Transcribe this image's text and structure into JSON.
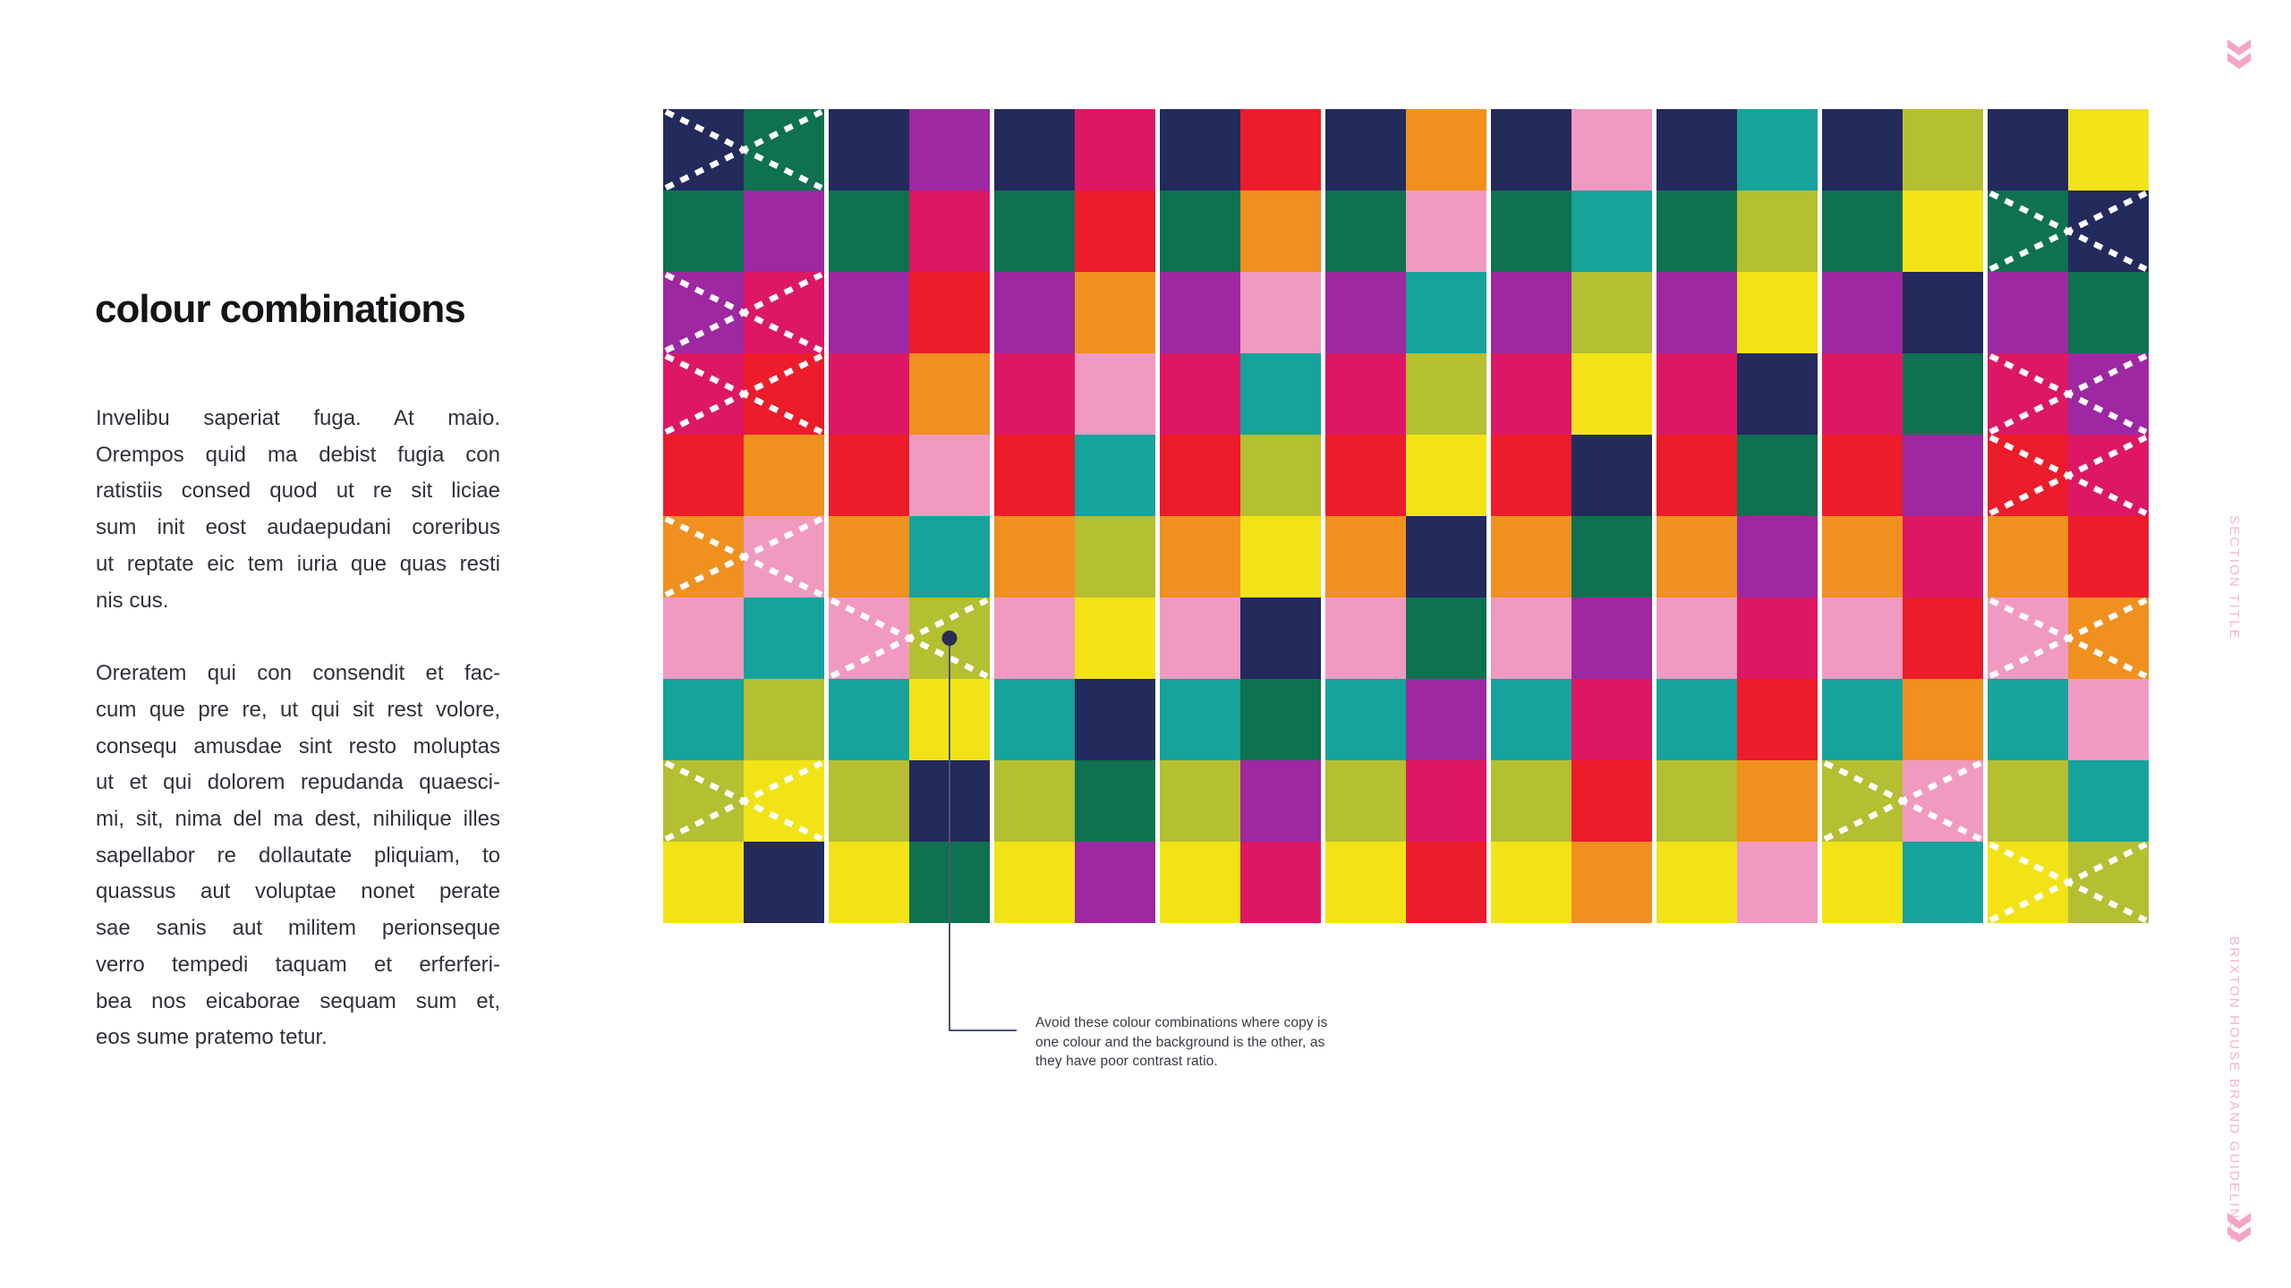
{
  "page": {
    "title": "colour combinations",
    "paragraphs": [
      {
        "lines": [
          "Invelibu saperiat fuga. At maio.",
          "Orempos quid ma debist fugia con",
          "ratistiis consed quod ut re sit liciae",
          "sum init eost audaepudani coreribus",
          "ut reptate eic tem iuria que quas resti",
          "nis cus."
        ]
      },
      {
        "lines": [
          "Oreratem qui con consendit et fac-",
          "cum que pre re, ut qui sit rest volore,",
          "consequ amusdae sint resto moluptas",
          "ut et qui dolorem repudanda quaesci-",
          "mi, sit, nima del ma dest, nihilique illes",
          "sapellabor re dollautate pliquiam, to",
          "quassus aut voluptae nonet perate",
          "sae sanis aut militem perionseque",
          "verro tempedi taquam et erferferi-",
          "bea nos eicaborae sequam sum et,",
          "eos sume pratemo tetur."
        ]
      }
    ]
  },
  "annotation": {
    "lines": [
      "Avoid these colour combinations where copy is",
      "one colour and the background is the other, as",
      "they have poor contrast ratio."
    ]
  },
  "sidebar": {
    "section_label": "SECTION TITLE",
    "brand_label": "BRIXTON HOUSE BRAND GUIDELINES"
  },
  "colors": {
    "pink_accent": "#f8b4cc",
    "chevron_pink": "#f5a5c6",
    "text": "#31313b",
    "leader_line": "#4a5470",
    "dot": "#272e52",
    "x_mark": "#ffffff"
  },
  "palette": {
    "navy": "#232a5c",
    "green": "#0e7150",
    "purple": "#9d28a1",
    "crimson": "#dd1763",
    "red": "#ec1c2a",
    "orange": "#f0901f",
    "pink": "#f19ac1",
    "teal": "#16a39b",
    "lime": "#b4bf31",
    "yellow": "#f2e317"
  },
  "grid": {
    "rows": 10,
    "pairs_per_row": 9,
    "callout": {
      "row": 7,
      "pair": 2,
      "cell": "lime"
    },
    "cells": [
      [
        [
          "navy",
          "green",
          true
        ],
        [
          "navy",
          "purple",
          false
        ],
        [
          "navy",
          "crimson",
          false
        ],
        [
          "navy",
          "red",
          false
        ],
        [
          "navy",
          "orange",
          false
        ],
        [
          "navy",
          "pink",
          false
        ],
        [
          "navy",
          "teal",
          false
        ],
        [
          "navy",
          "lime",
          false
        ],
        [
          "navy",
          "yellow",
          false
        ]
      ],
      [
        [
          "green",
          "purple",
          false
        ],
        [
          "green",
          "crimson",
          false
        ],
        [
          "green",
          "red",
          false
        ],
        [
          "green",
          "orange",
          false
        ],
        [
          "green",
          "pink",
          false
        ],
        [
          "green",
          "teal",
          false
        ],
        [
          "green",
          "lime",
          false
        ],
        [
          "green",
          "yellow",
          false
        ],
        [
          "green",
          "navy",
          true
        ]
      ],
      [
        [
          "purple",
          "crimson",
          true
        ],
        [
          "purple",
          "red",
          false
        ],
        [
          "purple",
          "orange",
          false
        ],
        [
          "purple",
          "pink",
          false
        ],
        [
          "purple",
          "teal",
          false
        ],
        [
          "purple",
          "lime",
          false
        ],
        [
          "purple",
          "yellow",
          false
        ],
        [
          "purple",
          "navy",
          false
        ],
        [
          "purple",
          "green",
          false
        ]
      ],
      [
        [
          "crimson",
          "red",
          true
        ],
        [
          "crimson",
          "orange",
          false
        ],
        [
          "crimson",
          "pink",
          false
        ],
        [
          "crimson",
          "teal",
          false
        ],
        [
          "crimson",
          "lime",
          false
        ],
        [
          "crimson",
          "yellow",
          false
        ],
        [
          "crimson",
          "navy",
          false
        ],
        [
          "crimson",
          "green",
          false
        ],
        [
          "crimson",
          "purple",
          true
        ]
      ],
      [
        [
          "red",
          "orange",
          false
        ],
        [
          "red",
          "pink",
          false
        ],
        [
          "red",
          "teal",
          false
        ],
        [
          "red",
          "lime",
          false
        ],
        [
          "red",
          "yellow",
          false
        ],
        [
          "red",
          "navy",
          false
        ],
        [
          "red",
          "green",
          false
        ],
        [
          "red",
          "purple",
          false
        ],
        [
          "red",
          "crimson",
          true
        ]
      ],
      [
        [
          "orange",
          "pink",
          true
        ],
        [
          "orange",
          "teal",
          false
        ],
        [
          "orange",
          "lime",
          false
        ],
        [
          "orange",
          "yellow",
          false
        ],
        [
          "orange",
          "navy",
          false
        ],
        [
          "orange",
          "green",
          false
        ],
        [
          "orange",
          "purple",
          false
        ],
        [
          "orange",
          "crimson",
          false
        ],
        [
          "orange",
          "red",
          false
        ]
      ],
      [
        [
          "pink",
          "teal",
          false
        ],
        [
          "pink",
          "lime",
          true
        ],
        [
          "pink",
          "yellow",
          false
        ],
        [
          "pink",
          "navy",
          false
        ],
        [
          "pink",
          "green",
          false
        ],
        [
          "pink",
          "purple",
          false
        ],
        [
          "pink",
          "crimson",
          false
        ],
        [
          "pink",
          "red",
          false
        ],
        [
          "pink",
          "orange",
          true
        ]
      ],
      [
        [
          "teal",
          "lime",
          false
        ],
        [
          "teal",
          "yellow",
          false
        ],
        [
          "teal",
          "navy",
          false
        ],
        [
          "teal",
          "green",
          false
        ],
        [
          "teal",
          "purple",
          false
        ],
        [
          "teal",
          "crimson",
          false
        ],
        [
          "teal",
          "red",
          false
        ],
        [
          "teal",
          "orange",
          false
        ],
        [
          "teal",
          "pink",
          false
        ]
      ],
      [
        [
          "lime",
          "yellow",
          true
        ],
        [
          "lime",
          "navy",
          false
        ],
        [
          "lime",
          "green",
          false
        ],
        [
          "lime",
          "purple",
          false
        ],
        [
          "lime",
          "crimson",
          false
        ],
        [
          "lime",
          "red",
          false
        ],
        [
          "lime",
          "orange",
          false
        ],
        [
          "lime",
          "pink",
          true
        ],
        [
          "lime",
          "teal",
          false
        ]
      ],
      [
        [
          "yellow",
          "navy",
          false
        ],
        [
          "yellow",
          "green",
          false
        ],
        [
          "yellow",
          "purple",
          false
        ],
        [
          "yellow",
          "crimson",
          false
        ],
        [
          "yellow",
          "red",
          false
        ],
        [
          "yellow",
          "orange",
          false
        ],
        [
          "yellow",
          "pink",
          false
        ],
        [
          "yellow",
          "teal",
          false
        ],
        [
          "yellow",
          "lime",
          true
        ]
      ]
    ]
  }
}
